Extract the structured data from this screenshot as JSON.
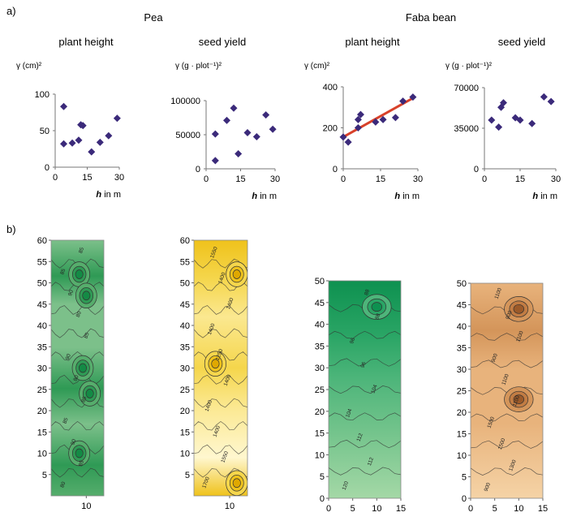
{
  "panel_labels": {
    "a": "a)",
    "b": "b)"
  },
  "crop_titles": [
    "Pea",
    "Faba bean"
  ],
  "colors": {
    "marker": "#3b2a7a",
    "fit_line": "#d8412a",
    "pea_height_fill": [
      "#a9d3a9",
      "#7cc08a",
      "#56ad6c",
      "#2f9a55",
      "#148a45"
    ],
    "pea_yield_fill": [
      "#fff7cf",
      "#fbe890",
      "#f5d64c",
      "#efc21b",
      "#e0a800"
    ],
    "faba_height_fill": [
      "#a4d8a6",
      "#74c48c",
      "#4db57a",
      "#2aa565",
      "#0e9150"
    ],
    "faba_yield_fill": [
      "#f5d3a6",
      "#e8b37c",
      "#d4955a",
      "#c27c43",
      "#9c5a29"
    ]
  },
  "chart_data": [
    {
      "type": "scatter",
      "title": "plant height",
      "crop": "Pea",
      "ylabel": "γ (cm)²",
      "xlabel": "h in m",
      "xlim": [
        0,
        30
      ],
      "ylim": [
        0,
        100
      ],
      "xticks": [
        "0",
        "15",
        "30"
      ],
      "yticks": [
        "0",
        "50",
        "100"
      ],
      "series": [
        {
          "points": [
            [
              4,
              83
            ],
            [
              4,
              32
            ],
            [
              8,
              33
            ],
            [
              11,
              37
            ],
            [
              12,
              58
            ],
            [
              13,
              57
            ],
            [
              17,
              21
            ],
            [
              21,
              34
            ],
            [
              25,
              43
            ],
            [
              29,
              67
            ]
          ]
        }
      ]
    },
    {
      "type": "scatter",
      "title": "seed yield",
      "crop": "Pea",
      "ylabel": "γ (g · plot⁻¹)²",
      "xlabel": "h in m",
      "xlim": [
        0,
        30
      ],
      "ylim": [
        0,
        100000
      ],
      "xticks": [
        "0",
        "15",
        "30"
      ],
      "yticks": [
        "0",
        "50000",
        "100000"
      ],
      "series": [
        {
          "points": [
            [
              4,
              12000
            ],
            [
              4,
              51000
            ],
            [
              9,
              71000
            ],
            [
              12,
              89000
            ],
            [
              14,
              22000
            ],
            [
              18,
              53000
            ],
            [
              22,
              47000
            ],
            [
              26,
              79000
            ],
            [
              29,
              58000
            ]
          ]
        }
      ]
    },
    {
      "type": "scatter",
      "title": "plant height",
      "crop": "Faba bean",
      "ylabel": "γ (cm)²",
      "xlabel": "h in m",
      "xlim": [
        0,
        30
      ],
      "ylim": [
        0,
        400
      ],
      "xticks": [
        "0",
        "15",
        "30"
      ],
      "yticks": [
        "0",
        "200",
        "400"
      ],
      "series": [
        {
          "points": [
            [
              0,
              155
            ],
            [
              2,
              130
            ],
            [
              6,
              200
            ],
            [
              6,
              240
            ],
            [
              7,
              265
            ],
            [
              13,
              228
            ],
            [
              16,
              240
            ],
            [
              21,
              250
            ],
            [
              24,
              330
            ],
            [
              28,
              350
            ]
          ]
        }
      ],
      "fit_line": [
        [
          0,
          155
        ],
        [
          28,
          345
        ]
      ]
    },
    {
      "type": "scatter",
      "title": "seed yield",
      "crop": "Faba bean",
      "ylabel": "γ (g · plot⁻¹)²",
      "xlabel": "h in m",
      "xlim": [
        0,
        30
      ],
      "ylim": [
        0,
        70000
      ],
      "xticks": [
        "0",
        "15",
        "30"
      ],
      "yticks": [
        "0",
        "35000",
        "70000"
      ],
      "series": [
        {
          "points": [
            [
              3,
              42000
            ],
            [
              6,
              36000
            ],
            [
              7,
              53000
            ],
            [
              8,
              57000
            ],
            [
              13,
              44000
            ],
            [
              15,
              42000
            ],
            [
              20,
              39000
            ],
            [
              25,
              62000
            ],
            [
              28,
              58000
            ]
          ]
        }
      ]
    },
    {
      "type": "heatmap",
      "name": "pea-plant-height-map",
      "xlim": [
        0,
        15
      ],
      "ylim": [
        0,
        60
      ],
      "xticks": [
        "10"
      ],
      "yticks": [
        "5",
        "10",
        "15",
        "20",
        "25",
        "30",
        "35",
        "40",
        "45",
        "50",
        "55",
        "60"
      ],
      "contour_labels": [
        "80",
        "85",
        "90",
        "85",
        "85",
        "80",
        "90",
        "85",
        "80",
        "90",
        "85",
        "85"
      ],
      "peaks": [
        [
          8,
          52
        ],
        [
          10,
          47
        ],
        [
          9,
          30
        ],
        [
          11,
          24
        ],
        [
          8,
          10
        ]
      ]
    },
    {
      "type": "heatmap",
      "name": "pea-seed-yield-map",
      "xlim": [
        0,
        15
      ],
      "ylim": [
        0,
        60
      ],
      "xticks": [
        "10"
      ],
      "yticks": [
        "5",
        "10",
        "15",
        "20",
        "25",
        "30",
        "35",
        "40",
        "45",
        "50",
        "55",
        "60"
      ],
      "contour_labels": [
        "1700",
        "1550",
        "1400",
        "1400",
        "1400",
        "1250",
        "1400",
        "1400",
        "1400",
        "1550"
      ],
      "peaks": [
        [
          6,
          31
        ],
        [
          12,
          52
        ],
        [
          12,
          3
        ]
      ]
    },
    {
      "type": "heatmap",
      "name": "faba-plant-height-map",
      "xlim": [
        0,
        15
      ],
      "ylim": [
        0,
        50
      ],
      "xticks": [
        "0",
        "5",
        "10",
        "15"
      ],
      "yticks": [
        "0",
        "5",
        "10",
        "15",
        "20",
        "25",
        "30",
        "35",
        "40",
        "45",
        "50"
      ],
      "contour_labels": [
        "120",
        "112",
        "112",
        "104",
        "104",
        "96",
        "96",
        "88",
        "88"
      ],
      "peaks": [
        [
          10,
          44
        ]
      ]
    },
    {
      "type": "heatmap",
      "name": "faba-seed-yield-map",
      "xlim": [
        0,
        15
      ],
      "ylim": [
        0,
        50
      ],
      "xticks": [
        "0",
        "5",
        "10",
        "15"
      ],
      "yticks": [
        "0",
        "5",
        "10",
        "15",
        "20",
        "25",
        "30",
        "35",
        "40",
        "45",
        "50"
      ],
      "contour_labels": [
        "900",
        "1300",
        "1500",
        "1500",
        "1100",
        "1100",
        "900",
        "1100",
        "900",
        "1100"
      ],
      "peaks": [
        [
          10,
          44
        ],
        [
          10,
          23
        ]
      ]
    }
  ]
}
